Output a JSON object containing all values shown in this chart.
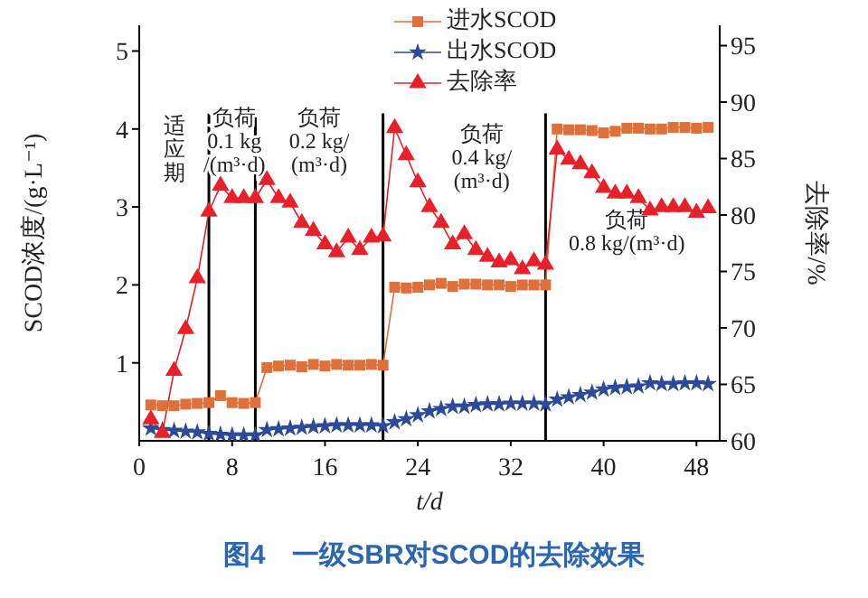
{
  "chart_data": {
    "type": "line",
    "title": "图4　一级SBR对SCOD的去除效果",
    "xlabel": "t/d",
    "ylabel": "SCOD浓度/(g·L⁻¹)",
    "y2label": "去除率/%",
    "x": [
      1,
      2,
      3,
      4,
      5,
      6,
      7,
      8,
      9,
      10,
      11,
      12,
      13,
      14,
      15,
      16,
      17,
      18,
      19,
      20,
      21,
      22,
      23,
      24,
      25,
      26,
      27,
      28,
      29,
      30,
      31,
      32,
      33,
      34,
      35,
      36,
      37,
      38,
      39,
      40,
      41,
      42,
      43,
      44,
      45,
      46,
      47,
      48,
      49
    ],
    "xlim": [
      0,
      50
    ],
    "xticks": [
      0,
      8,
      16,
      24,
      32,
      40,
      48
    ],
    "ylim": [
      0,
      5.33
    ],
    "yticks": [
      1,
      2,
      3,
      4,
      5
    ],
    "y2lim": [
      60,
      96.8
    ],
    "y2ticks": [
      60,
      65,
      70,
      75,
      80,
      85,
      90,
      95
    ],
    "legend": "top right",
    "grid": false,
    "series": [
      {
        "name": "进水SCOD",
        "color": "#e0703a",
        "marker": "square",
        "values": [
          0.46,
          0.45,
          0.45,
          0.47,
          0.48,
          0.49,
          0.58,
          0.49,
          0.48,
          0.49,
          0.94,
          0.96,
          0.97,
          0.95,
          0.98,
          0.96,
          0.98,
          0.97,
          0.97,
          0.98,
          0.97,
          1.97,
          1.96,
          1.97,
          2.0,
          2.02,
          1.98,
          2.01,
          2.01,
          2.0,
          2.0,
          1.98,
          2.0,
          2.0,
          2.0,
          4.0,
          3.99,
          3.99,
          3.98,
          3.95,
          3.97,
          4.01,
          4.01,
          4.0,
          4.0,
          4.02,
          4.02,
          4.01,
          4.02
        ]
      },
      {
        "name": "出水SCOD",
        "color": "#2b4a9a",
        "marker": "star",
        "values": [
          0.16,
          0.14,
          0.13,
          0.12,
          0.11,
          0.09,
          0.08,
          0.07,
          0.07,
          0.07,
          0.14,
          0.15,
          0.16,
          0.17,
          0.18,
          0.19,
          0.2,
          0.2,
          0.2,
          0.2,
          0.19,
          0.24,
          0.28,
          0.33,
          0.38,
          0.41,
          0.44,
          0.44,
          0.46,
          0.47,
          0.47,
          0.48,
          0.48,
          0.48,
          0.47,
          0.53,
          0.56,
          0.59,
          0.62,
          0.66,
          0.68,
          0.69,
          0.7,
          0.74,
          0.73,
          0.73,
          0.74,
          0.74,
          0.73
        ]
      },
      {
        "name": "去除率",
        "color": "#e8202a",
        "marker": "triangle",
        "axis": "y2",
        "values": [
          61.9,
          60.7,
          66.2,
          69.9,
          74.4,
          80.3,
          82.6,
          81.5,
          81.5,
          81.5,
          83.1,
          81.5,
          81.1,
          79.3,
          78.6,
          77.4,
          76.7,
          78.0,
          76.9,
          78.0,
          78.1,
          87.7,
          85.3,
          82.9,
          80.7,
          79.3,
          77.4,
          78.3,
          76.9,
          76.3,
          75.8,
          76.0,
          75.2,
          75.9,
          75.6,
          85.8,
          84.9,
          84.5,
          83.7,
          82.4,
          81.9,
          81.9,
          81.5,
          80.4,
          80.7,
          80.7,
          80.7,
          80.2,
          80.6
        ]
      }
    ],
    "ref_lines": [
      {
        "axis": "x",
        "value": 6,
        "color": "#000000"
      },
      {
        "axis": "x",
        "value": 10,
        "color": "#000000"
      },
      {
        "axis": "x",
        "value": 21,
        "color": "#000000"
      },
      {
        "axis": "x",
        "value": 35,
        "color": "#000000"
      }
    ],
    "annotations": [
      "适应期",
      "负荷\n0.1 kg\n/(m³·d)",
      "负荷\n0.2 kg/\n(m³·d)",
      "负荷\n0.4 kg/\n(m³·d)",
      "负荷\n0.8 kg/(m³·d)"
    ]
  }
}
